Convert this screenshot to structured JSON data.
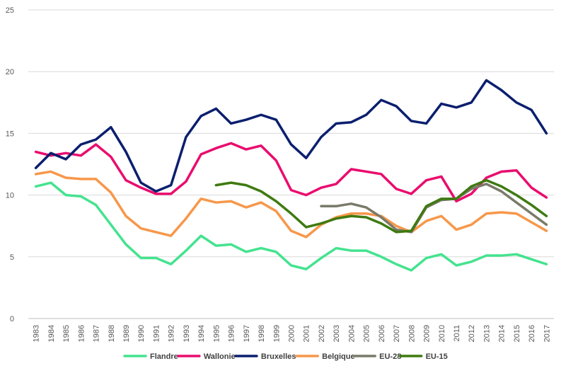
{
  "chart_data": {
    "type": "line",
    "title": "",
    "xlabel": "",
    "ylabel": "",
    "ylim": [
      0,
      25
    ],
    "yticks": [
      "0",
      "5",
      "10",
      "15",
      "20",
      "25"
    ],
    "grid": true,
    "legend_position": "bottom",
    "categories": [
      "1983",
      "1984",
      "1985",
      "1986",
      "1987",
      "1988",
      "1989",
      "1990",
      "1991",
      "1992",
      "1993",
      "1994",
      "1995",
      "1996",
      "1997",
      "1998",
      "1999",
      "2000",
      "2001",
      "2002",
      "2003",
      "2004",
      "2005",
      "2006",
      "2007",
      "2008",
      "2009",
      "2010",
      "2011",
      "2012",
      "2013",
      "2014",
      "2015",
      "2016",
      "2017"
    ],
    "series": [
      {
        "name": "Flandre",
        "color": "#44e38f",
        "values": [
          10.7,
          11.0,
          10.0,
          9.9,
          9.2,
          7.6,
          6.0,
          4.9,
          4.9,
          4.4,
          5.5,
          6.7,
          5.9,
          6.0,
          5.4,
          5.7,
          5.4,
          4.3,
          4.0,
          4.9,
          5.7,
          5.5,
          5.5,
          5.0,
          4.4,
          3.9,
          4.9,
          5.2,
          4.3,
          4.6,
          5.1,
          5.1,
          5.2,
          4.8,
          4.4
        ]
      },
      {
        "name": "Wallonie",
        "color": "#ea0c6e",
        "values": [
          13.5,
          13.2,
          13.4,
          13.2,
          14.1,
          13.1,
          11.2,
          10.6,
          10.1,
          10.1,
          11.1,
          13.3,
          13.8,
          14.2,
          13.7,
          14.0,
          12.8,
          10.4,
          10.0,
          10.6,
          10.9,
          12.1,
          11.9,
          11.7,
          10.5,
          10.1,
          11.2,
          11.5,
          9.5,
          10.1,
          11.4,
          11.9,
          12.0,
          10.6,
          9.8
        ]
      },
      {
        "name": "Bruxelles",
        "color": "#0b1f6e",
        "values": [
          12.2,
          13.4,
          12.9,
          14.1,
          14.5,
          15.5,
          13.5,
          11.0,
          10.3,
          10.8,
          14.7,
          16.4,
          17.0,
          15.8,
          16.1,
          16.5,
          16.1,
          14.1,
          13.0,
          14.7,
          15.8,
          15.9,
          16.5,
          17.7,
          17.2,
          16.0,
          15.8,
          17.4,
          17.1,
          17.5,
          19.3,
          18.5,
          17.5,
          16.9,
          15.0
        ]
      },
      {
        "name": "Belgique",
        "color": "#f7974a",
        "values": [
          11.7,
          11.9,
          11.4,
          11.3,
          11.3,
          10.2,
          8.3,
          7.3,
          7.0,
          6.7,
          8.1,
          9.7,
          9.4,
          9.5,
          9.0,
          9.4,
          8.7,
          7.1,
          6.6,
          7.6,
          8.2,
          8.5,
          8.5,
          8.3,
          7.5,
          7.0,
          7.9,
          8.3,
          7.2,
          7.6,
          8.5,
          8.6,
          8.5,
          7.8,
          7.1
        ]
      },
      {
        "name": "EU-28",
        "color": "#7a7a6a",
        "values": [
          null,
          null,
          null,
          null,
          null,
          null,
          null,
          null,
          null,
          null,
          null,
          null,
          null,
          null,
          null,
          null,
          null,
          null,
          null,
          9.1,
          9.1,
          9.3,
          9.0,
          8.2,
          7.2,
          7.0,
          9.0,
          9.6,
          9.7,
          10.5,
          10.9,
          10.3,
          9.4,
          8.5,
          7.6
        ]
      },
      {
        "name": "EU-15",
        "color": "#3e7a10",
        "values": [
          null,
          null,
          null,
          null,
          null,
          null,
          null,
          null,
          null,
          null,
          null,
          null,
          10.8,
          11.0,
          10.8,
          10.3,
          9.5,
          8.5,
          7.4,
          7.7,
          8.1,
          8.3,
          8.2,
          7.7,
          7.0,
          7.1,
          9.1,
          9.7,
          9.7,
          10.7,
          11.2,
          10.7,
          10.0,
          9.2,
          8.3
        ]
      }
    ]
  }
}
